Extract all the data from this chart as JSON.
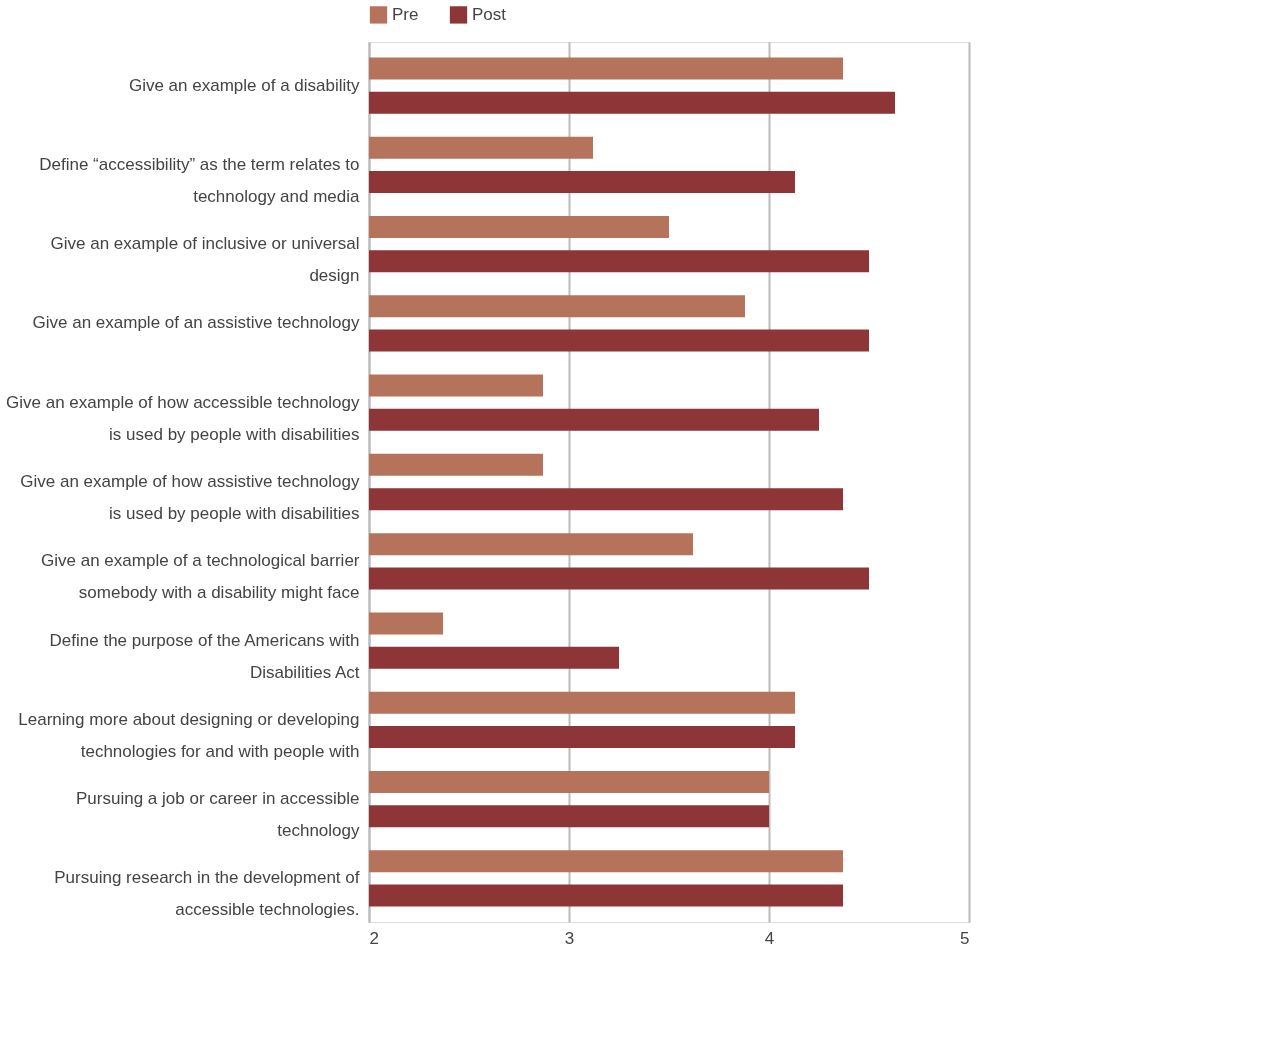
{
  "chart_data": {
    "type": "bar",
    "orientation": "horizontal",
    "categories": [
      "Give an example of a disability",
      "Define “accessibility” as the term relates to technology and media",
      "Give an example of inclusive or universal design",
      "Give an example of an assistive technology",
      "Give an example of how accessible technology is used by people with disabilities",
      "Give an example of how assistive technology is used by people with disabilities",
      "Give an example of a technological barrier somebody with a disability might face",
      "Define the purpose of the Americans with Disabilities Act",
      "Learning more about designing or developing technologies for and with people with",
      "Pursuing a job or career in accessible technology",
      "Pursuing research in the development of accessible technologies."
    ],
    "series": [
      {
        "name": "Pre",
        "color": "#b5735c",
        "values": [
          4.37,
          3.12,
          3.5,
          3.88,
          2.87,
          2.87,
          3.62,
          2.37,
          4.13,
          4.0,
          4.37
        ]
      },
      {
        "name": "Post",
        "color": "#8e3538",
        "values": [
          4.63,
          4.13,
          4.5,
          4.5,
          4.25,
          4.37,
          4.5,
          3.25,
          4.13,
          4.0,
          4.37
        ]
      }
    ],
    "xlim": [
      2,
      5
    ],
    "xticks": [
      2,
      3,
      4,
      5
    ],
    "grid": "x",
    "legend": "top"
  }
}
